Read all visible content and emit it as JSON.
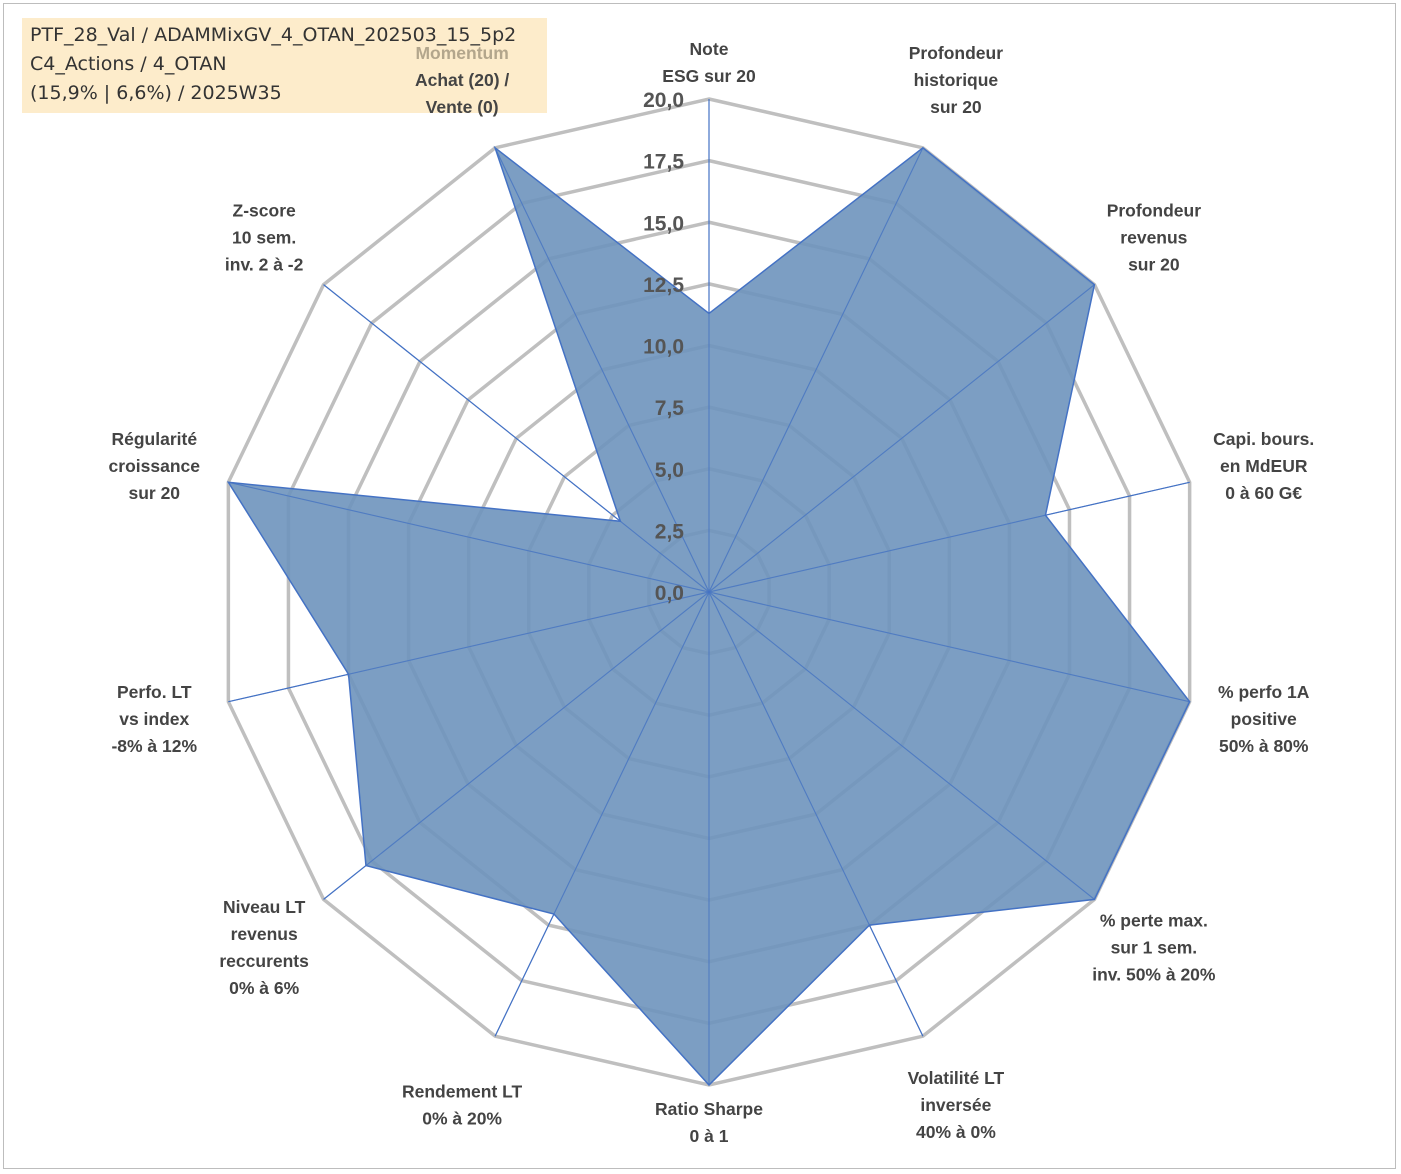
{
  "header": {
    "lines": [
      "PTF_28_Val / ADAMMixGV_4_OTAN_202503_15_5p2",
      "C4_Actions / 4_OTAN",
      "(15,9% | 6,6%) / 2025W35"
    ]
  },
  "chart_data": {
    "type": "radar",
    "scale": {
      "min": 0,
      "max": 20,
      "step": 2.5
    },
    "tick_labels": [
      "0,0",
      "2,5",
      "5,0",
      "7,5",
      "10,0",
      "12,5",
      "15,0",
      "17,5",
      "20,0"
    ],
    "axes": [
      {
        "label_lines": [
          "Note",
          "ESG sur 20"
        ],
        "value": 11.3
      },
      {
        "label_lines": [
          "Profondeur",
          "historique",
          "sur 20"
        ],
        "value": 20.0
      },
      {
        "label_lines": [
          "Profondeur",
          "revenus",
          "sur 20"
        ],
        "value": 20.0
      },
      {
        "label_lines": [
          "Capi. bours.",
          "en MdEUR",
          "0 à 60 G€"
        ],
        "value": 14.0
      },
      {
        "label_lines": [
          "% perfo 1A",
          "positive",
          "50% à 80%"
        ],
        "value": 20.0
      },
      {
        "label_lines": [
          "% perte max.",
          "sur 1 sem.",
          "inv. 50% à 20%"
        ],
        "value": 20.0
      },
      {
        "label_lines": [
          "Volatilité LT",
          "inversée",
          "40% à 0%"
        ],
        "value": 15.0
      },
      {
        "label_lines": [
          "Ratio Sharpe",
          "0 à 1"
        ],
        "value": 20.0
      },
      {
        "label_lines": [
          "Rendement LT",
          "0% à 20%"
        ],
        "value": 14.5
      },
      {
        "label_lines": [
          "Niveau LT",
          "revenus",
          "reccurents",
          "0% à 6%"
        ],
        "value": 17.8
      },
      {
        "label_lines": [
          "Perfo. LT",
          "vs index",
          "-8% à 12%"
        ],
        "value": 15.0
      },
      {
        "label_lines": [
          "Régularité",
          "croissance",
          "sur 20"
        ],
        "value": 20.0
      },
      {
        "label_lines": [
          "Z-score",
          "10 sem.",
          "inv. 2 à -2"
        ],
        "value": 4.6
      },
      {
        "label_lines": [
          "Momentum",
          "Achat (20) /",
          "Vente (0)"
        ],
        "value": 20.0
      }
    ],
    "colors": {
      "fill": "#6e93bd",
      "stroke": "#4472c4",
      "grid": "#bfbfbf",
      "spoke": "#4472c4"
    }
  }
}
